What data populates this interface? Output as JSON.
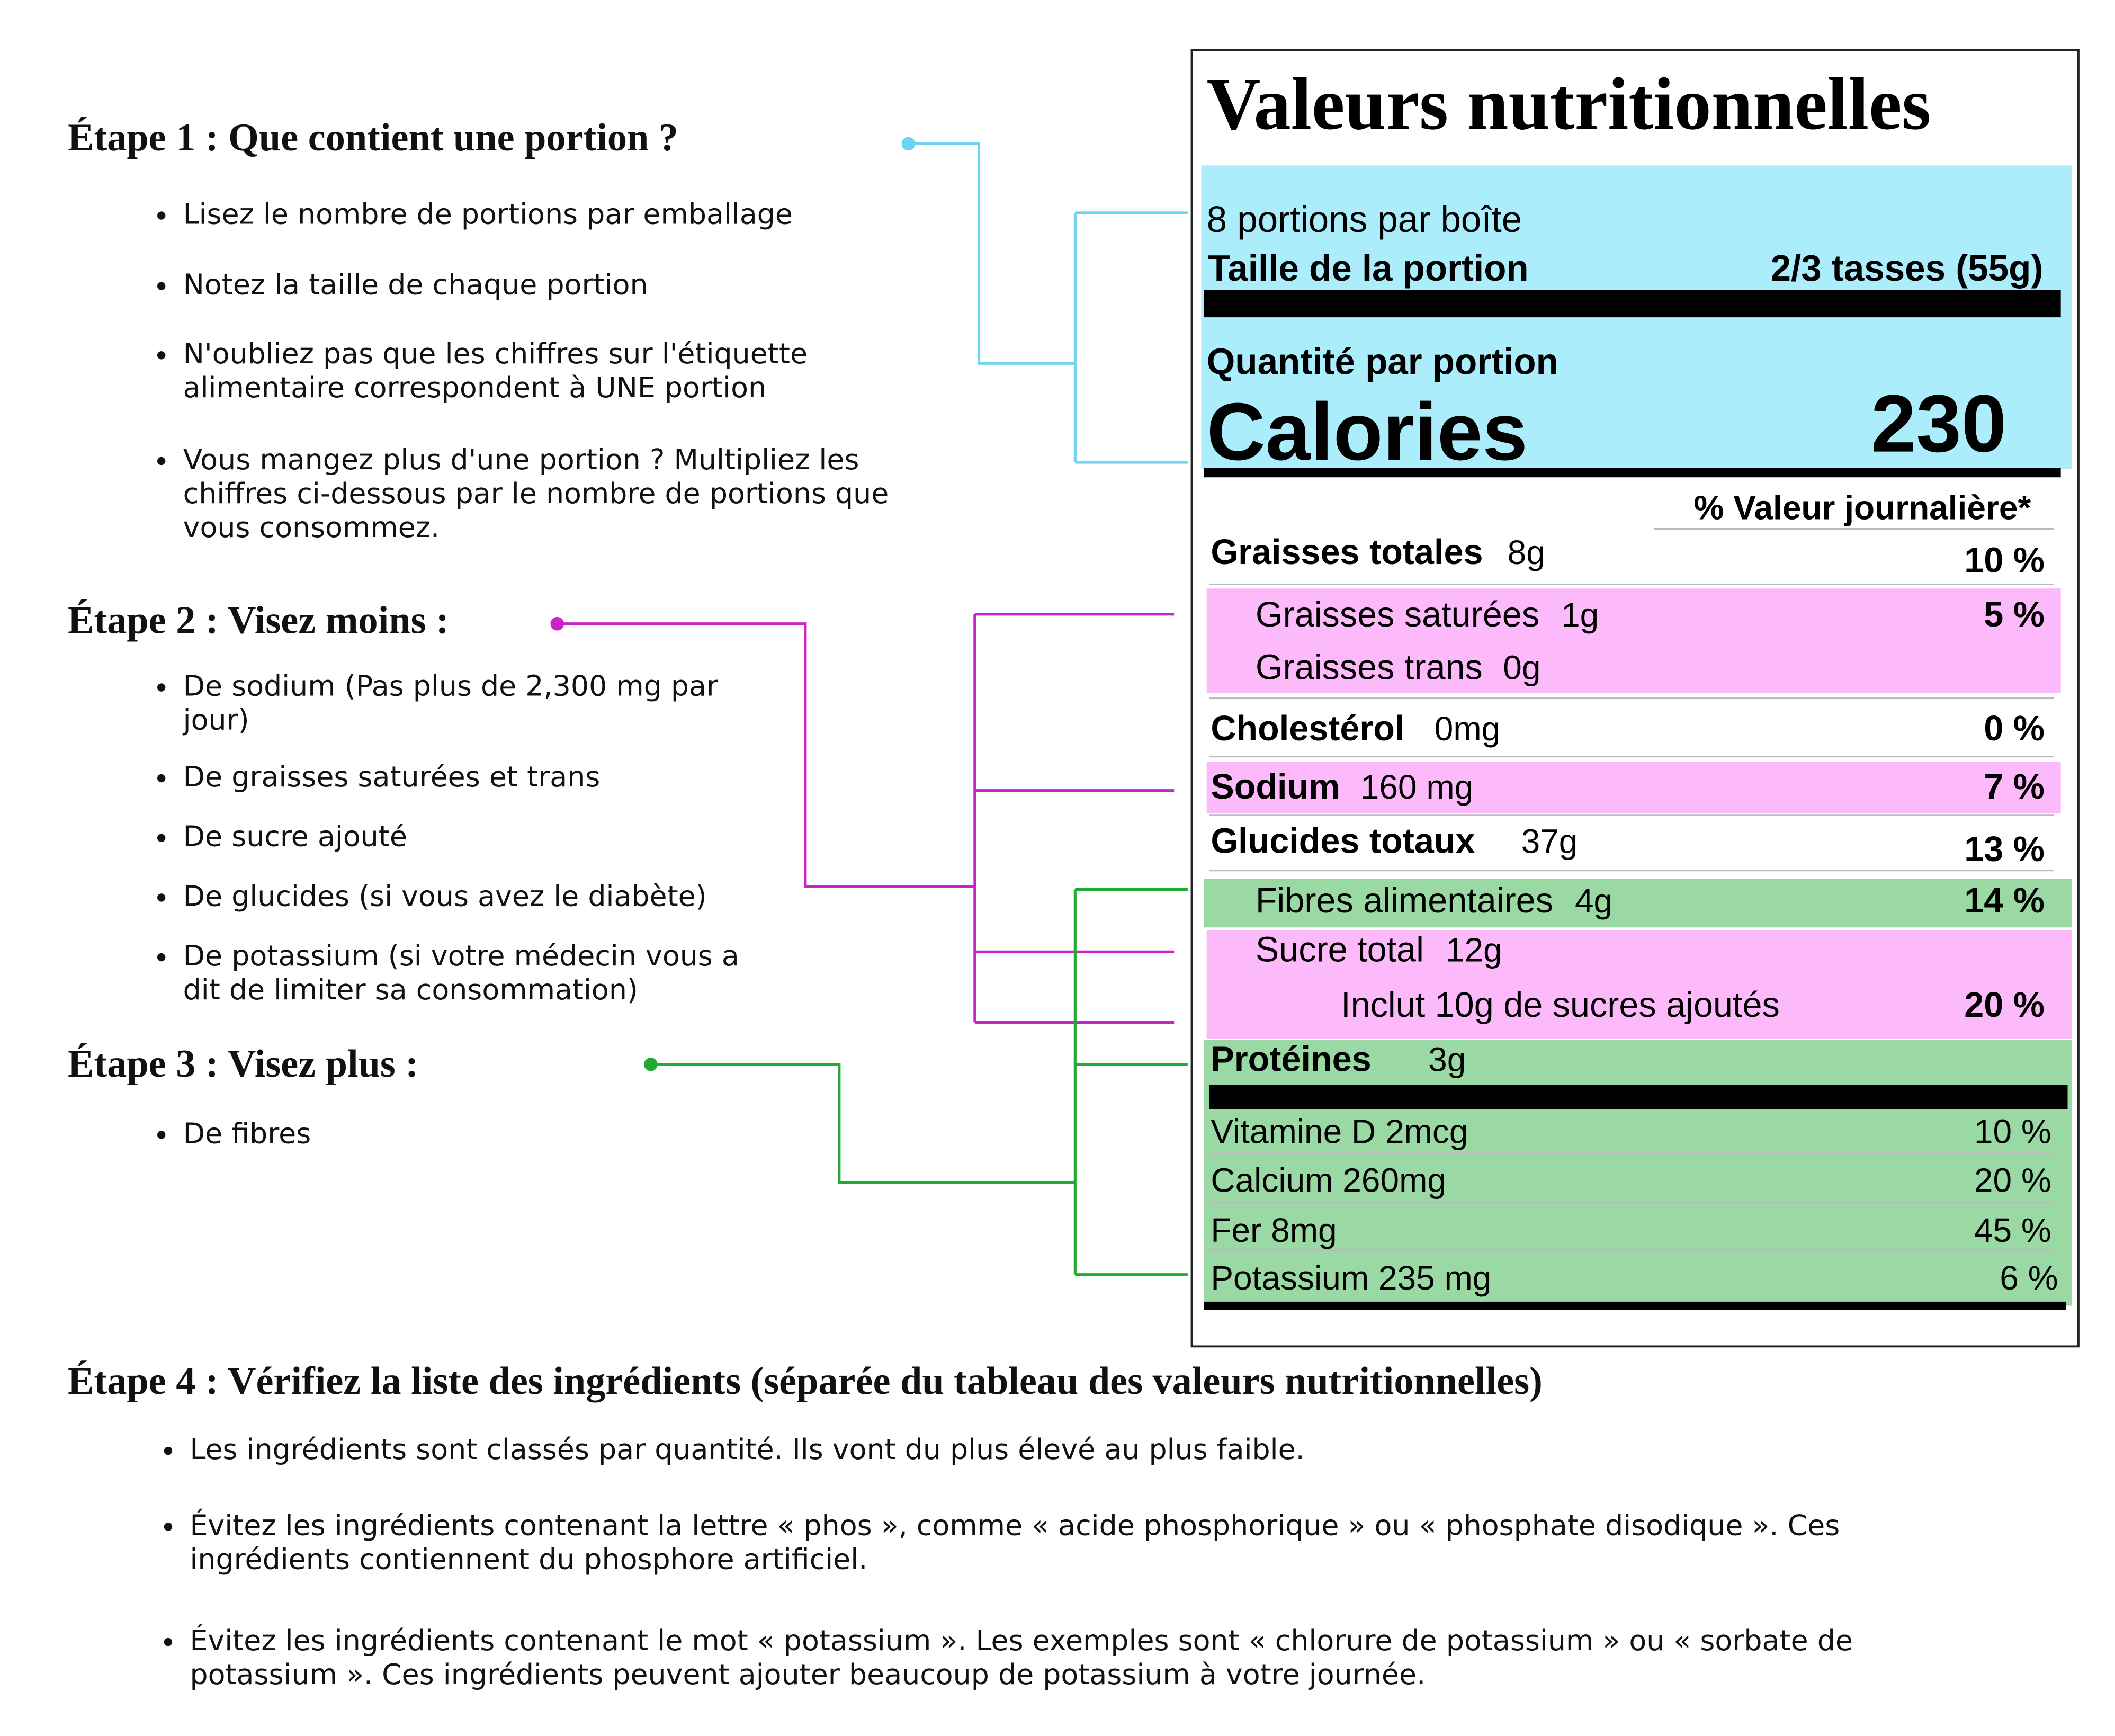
{
  "steps": [
    {
      "title": "Étape 1 : Que contient une portion ?",
      "bullets": [
        "Lisez le nombre de portions par emballage",
        "Notez la taille de chaque portion",
        "N'oubliez pas que les chiffres sur l'étiquette alimentaire correspondent à UNE portion",
        "Vous mangez plus d'une portion ? Multipliez les chiffres ci-dessous par le nombre de portions que vous consommez."
      ]
    },
    {
      "title": "Étape 2 : Visez moins :",
      "bullets": [
        "De sodium  (Pas plus de 2,300 mg par jour)",
        "De graisses saturées et trans",
        "De sucre ajouté",
        "De glucides (si vous avez le diabète)",
        "De potassium (si votre médecin vous a dit de limiter sa consommation)"
      ]
    },
    {
      "title": "Étape 3 : Visez plus :",
      "bullets": [
        "De fibres"
      ]
    },
    {
      "title": "Étape 4 : Vérifiez la liste des ingrédients (séparée du tableau des valeurs nutritionnelles)",
      "bullets": [
        "Les ingrédients sont classés par quantité. Ils vont du plus élevé au plus faible.",
        "Évitez les ingrédients contenant la lettre « phos », comme « acide phosphorique » ou « phosphate disodique ». Ces ingrédients contiennent du phosphore artificiel.",
        "Évitez les ingrédients contenant le mot « potassium ». Les exemples sont « chlorure de potassium » ou « sorbate de potassium ». Ces ingrédients peuvent ajouter beaucoup de potassium à votre journée."
      ]
    }
  ],
  "label": {
    "title": "Valeurs nutritionnelles",
    "servings": "8 portions par boîte",
    "serving_size_label": "Taille de la portion",
    "serving_size_value": "2/3 tasses (55g)",
    "amount_per_serving": "Quantité par portion",
    "calories_label": "Calories",
    "calories_value": "230",
    "dv_header": "% Valeur journalière*",
    "rows": [
      {
        "name": "Graisses totales",
        "amount": "8g",
        "dv": "10 %"
      },
      {
        "name": "Graisses saturées",
        "amount": "1g",
        "dv": "5 %"
      },
      {
        "name": "Graisses trans",
        "amount": "0g"
      },
      {
        "name": "Cholestérol",
        "amount": "0mg",
        "dv": "0 %"
      },
      {
        "name": "Sodium",
        "amount": "160 mg",
        "dv": "7 %"
      },
      {
        "name": "Glucides totaux",
        "amount": "37g",
        "dv": "13 %"
      },
      {
        "name": "Fibres alimentaires",
        "amount": "4g",
        "dv": "14 %"
      },
      {
        "name": "Sucre total",
        "amount": "12g"
      },
      {
        "name": "Inclut 10g de sucres ajoutés",
        "dv": "20 %"
      },
      {
        "name": "Protéines",
        "amount": "3g"
      }
    ],
    "vitamins": [
      {
        "name": "Vitamine D 2mcg",
        "dv": "10 %"
      },
      {
        "name": "Calcium 260mg",
        "dv": "20 %"
      },
      {
        "name": "Fer 8mg",
        "dv": "45 %"
      },
      {
        "name": "Potassium 235 mg",
        "dv": "6 %"
      }
    ]
  }
}
